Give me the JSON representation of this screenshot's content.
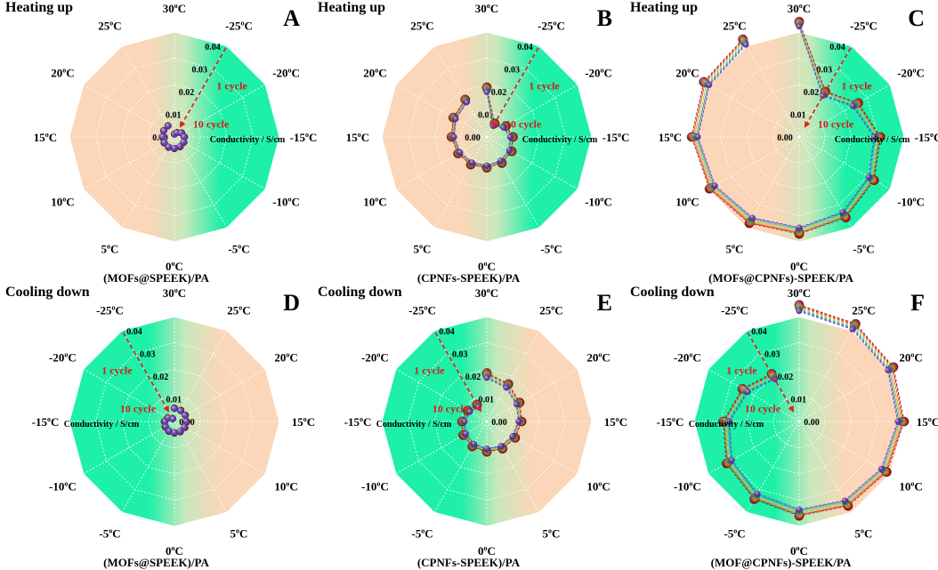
{
  "radial_axis_label": "Conductivity / S/cm",
  "radial_ticks": [
    "0.00",
    "0.01",
    "0.02",
    "0.03",
    "0.04"
  ],
  "cycle_first_label": "1 cycle",
  "cycle_last_label": "10 cycle",
  "degree_suffix": "C",
  "colors": {
    "warm": "#fbd6b8",
    "cool": "#1ef0a8",
    "arrow": "#e02020",
    "cycle_text": "#d21b1b",
    "markers": [
      "#8b0a18",
      "#c21f2b",
      "#e94a2f",
      "#f58a2c",
      "#f6c02c",
      "#9fd84f",
      "#37c6a3",
      "#2c9ed8",
      "#3d5fd6",
      "#6a38c9"
    ]
  },
  "chart_data": [
    {
      "type": "polar-line",
      "letter": "A",
      "title": "Heating up",
      "caption": "(MOFs@SPEEK)/PA",
      "temperature_labels": [
        "30",
        "-25",
        "-20",
        "-15",
        "-10",
        "-5",
        "0",
        "5",
        "10",
        "15",
        "20",
        "25"
      ],
      "r_range": [
        0,
        0.04
      ],
      "series_count": 10,
      "values_first_cycle": [
        0.0012,
        0.002,
        0.0032,
        0.0039,
        0.0042,
        0.0044,
        0.0045,
        0.0046,
        0.0046,
        0.0047,
        0.0048,
        0.005
      ],
      "values_last_cycle": [
        0.001,
        0.0018,
        0.003,
        0.0037,
        0.004,
        0.0042,
        0.0043,
        0.0044,
        0.0044,
        0.0045,
        0.0046,
        0.0048
      ]
    },
    {
      "type": "polar-line",
      "letter": "B",
      "title": "Heating up",
      "caption": "(CPNFs-SPEEK)/PA",
      "temperature_labels": [
        "30",
        "-25",
        "-20",
        "-15",
        "-10",
        "-5",
        "0",
        "5",
        "10",
        "15",
        "20",
        "25"
      ],
      "r_range": [
        0,
        0.04
      ],
      "series_count": 10,
      "values_first_cycle": [
        0.019,
        0.006,
        0.0085,
        0.01,
        0.011,
        0.0115,
        0.0118,
        0.0122,
        0.0127,
        0.0135,
        0.0148,
        0.0165
      ],
      "values_last_cycle": [
        0.017,
        0.0048,
        0.0072,
        0.0088,
        0.0098,
        0.0104,
        0.0108,
        0.0112,
        0.0117,
        0.0124,
        0.0136,
        0.0152
      ]
    },
    {
      "type": "polar-line",
      "letter": "C",
      "title": "Heating up",
      "caption": "(MOFs@CPNFs)-SPEEK/PA",
      "temperature_labels": [
        "30",
        "-25",
        "-20",
        "-15",
        "-10",
        "-5",
        "0",
        "5",
        "10",
        "15",
        "20",
        "25"
      ],
      "r_range": [
        0,
        0.04
      ],
      "series_count": 10,
      "values_first_cycle": [
        0.044,
        0.02,
        0.026,
        0.031,
        0.033,
        0.0355,
        0.037,
        0.038,
        0.0395,
        0.041,
        0.042,
        0.043
      ],
      "values_last_cycle": [
        0.042,
        0.018,
        0.0235,
        0.0285,
        0.0305,
        0.033,
        0.0345,
        0.0355,
        0.037,
        0.0385,
        0.0395,
        0.0405
      ]
    },
    {
      "type": "polar-line",
      "letter": "D",
      "title": "Cooling down",
      "caption": "(MOFs@SPEEK)/PA",
      "temperature_labels": [
        "30",
        "25",
        "20",
        "15",
        "10",
        "5",
        "0",
        "-5",
        "-10",
        "-15",
        "-20",
        "-25"
      ],
      "r_range": [
        0,
        0.04
      ],
      "series_count": 10,
      "values_first_cycle": [
        0.0052,
        0.005,
        0.0049,
        0.0048,
        0.0047,
        0.0046,
        0.0045,
        0.0044,
        0.0042,
        0.0039,
        0.003,
        0.0014
      ],
      "values_last_cycle": [
        0.0049,
        0.0047,
        0.0046,
        0.0045,
        0.0044,
        0.0043,
        0.0042,
        0.0041,
        0.0039,
        0.0036,
        0.0027,
        0.0011
      ]
    },
    {
      "type": "polar-line",
      "letter": "E",
      "title": "Cooling down",
      "caption": "(CPNFs-SPEEK)/PA",
      "temperature_labels": [
        "30",
        "25",
        "20",
        "15",
        "10",
        "5",
        "0",
        "-5",
        "-10",
        "-15",
        "-20",
        "-25"
      ],
      "r_range": [
        0,
        0.04
      ],
      "series_count": 10,
      "values_first_cycle": [
        0.0185,
        0.0165,
        0.0145,
        0.0133,
        0.0125,
        0.012,
        0.0116,
        0.011,
        0.0104,
        0.0095,
        0.0085,
        0.0075
      ],
      "values_last_cycle": [
        0.0165,
        0.0148,
        0.013,
        0.012,
        0.0112,
        0.0107,
        0.0103,
        0.0098,
        0.0092,
        0.0084,
        0.0074,
        0.0064
      ]
    },
    {
      "type": "polar-line",
      "letter": "F",
      "title": "Cooling down",
      "caption": "(MOF@CPNFs)-SPEEK/PA",
      "temperature_labels": [
        "30",
        "25",
        "20",
        "15",
        "10",
        "5",
        "0",
        "-5",
        "-10",
        "-15",
        "-20",
        "-25"
      ],
      "r_range": [
        0,
        0.04
      ],
      "series_count": 10,
      "values_first_cycle": [
        0.0445,
        0.043,
        0.0415,
        0.04,
        0.0385,
        0.0372,
        0.036,
        0.0342,
        0.032,
        0.029,
        0.025,
        0.021
      ],
      "values_last_cycle": [
        0.042,
        0.0405,
        0.039,
        0.0375,
        0.036,
        0.0347,
        0.0335,
        0.0317,
        0.0295,
        0.0265,
        0.0225,
        0.0185
      ]
    }
  ]
}
